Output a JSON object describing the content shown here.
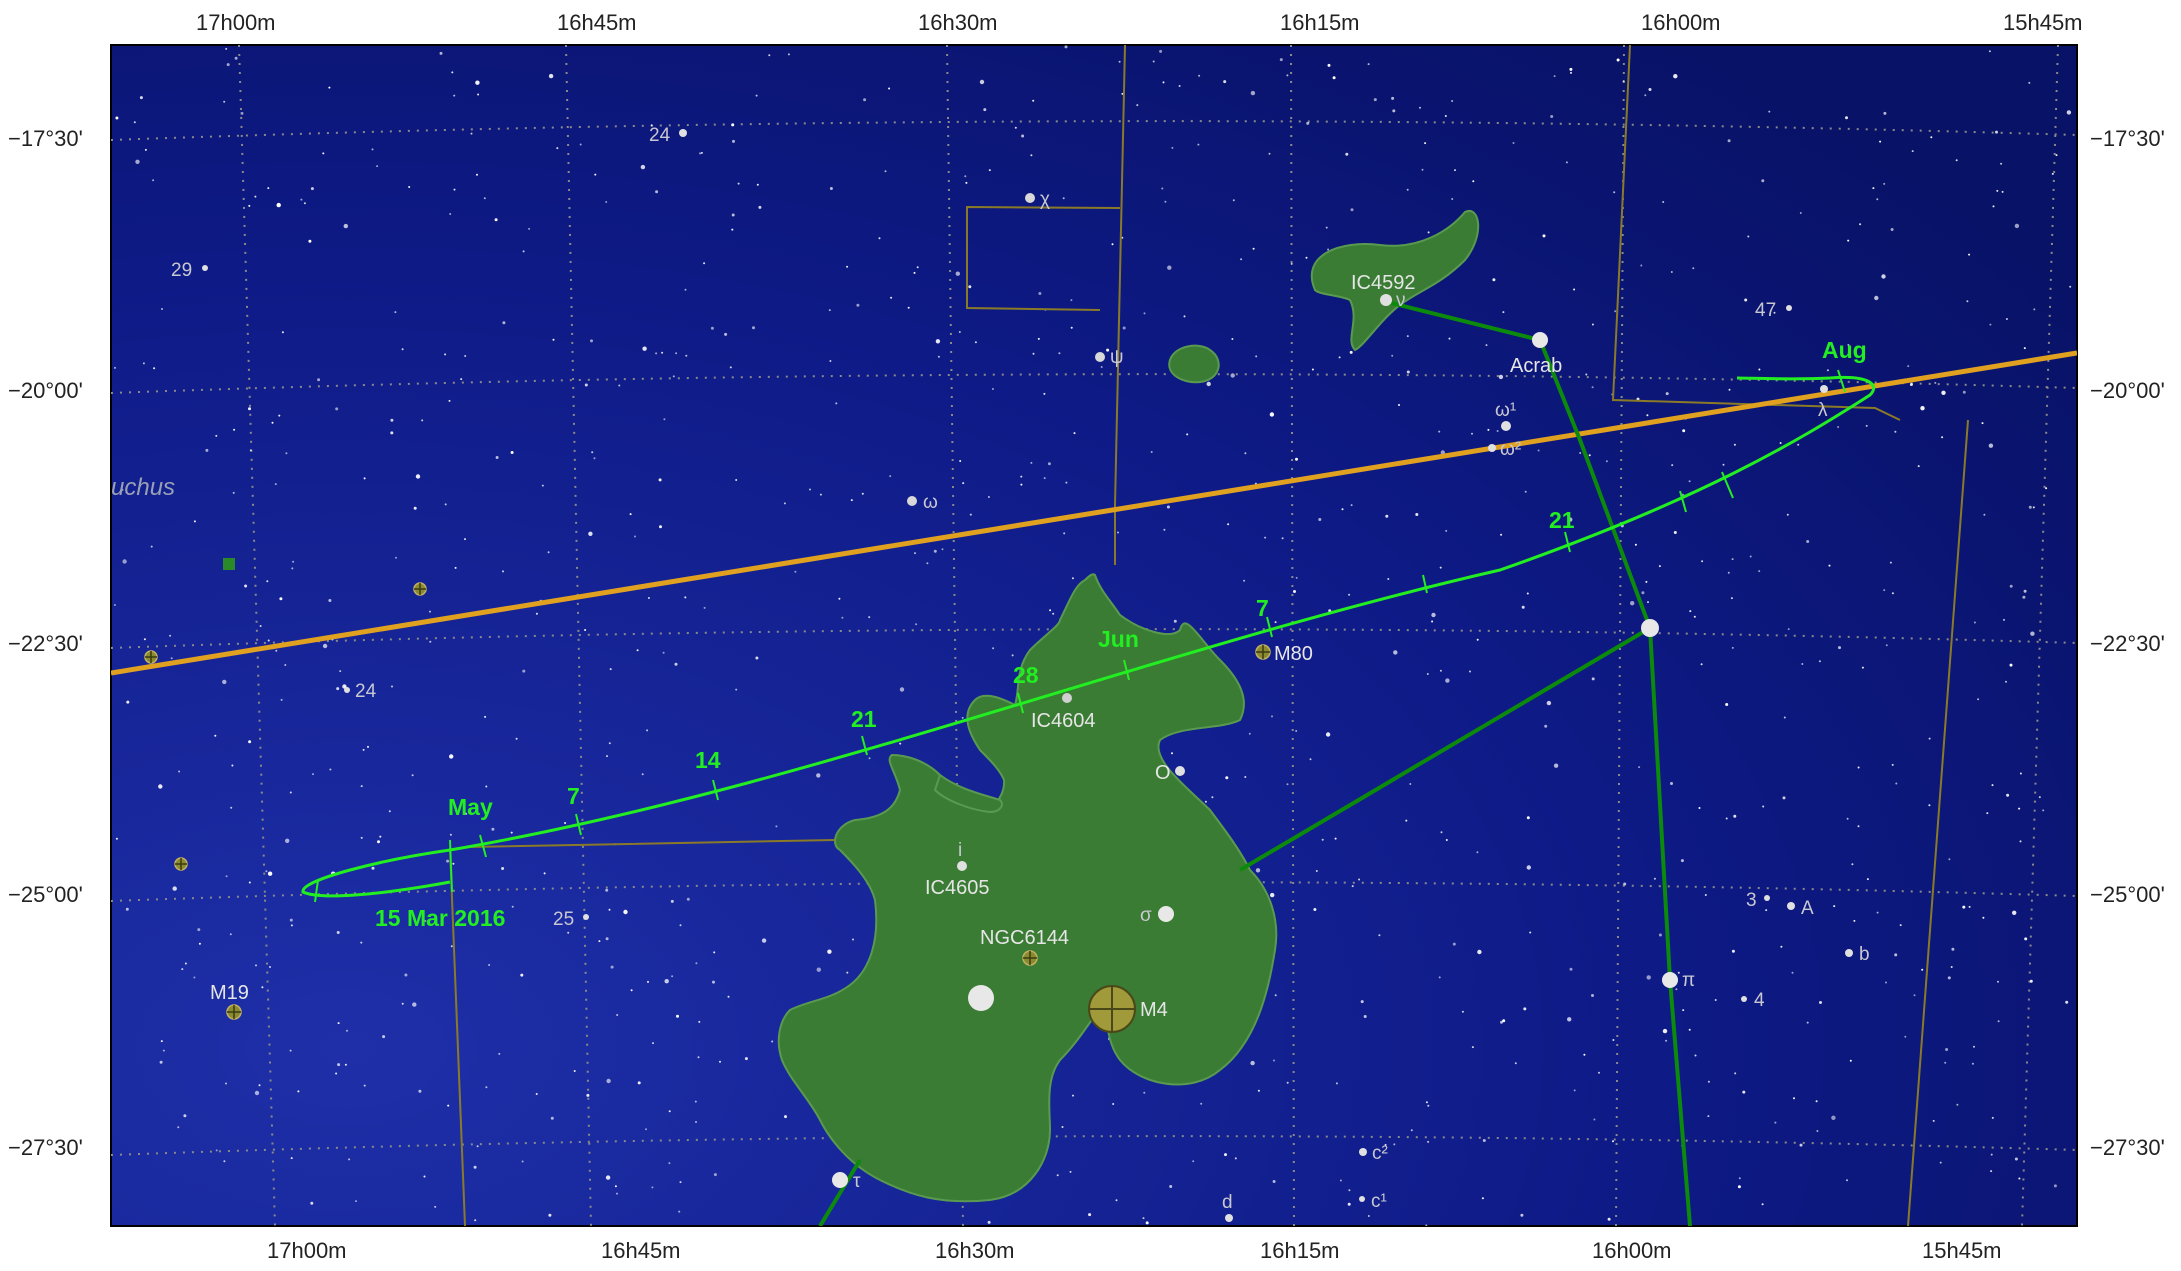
{
  "map": {
    "ra_top_labels": [
      "17h00m",
      "16h45m",
      "16h30m",
      "16h15m",
      "16h00m",
      "15h45m"
    ],
    "ra_bottom_labels": [
      "17h00m",
      "16h45m",
      "16h30m",
      "16h15m",
      "16h00m",
      "15h45m"
    ],
    "dec_labels": [
      "−17°30'",
      "−20°00'",
      "−22°30'",
      "−25°00'",
      "−27°30'"
    ],
    "constellation_fragment": "uchus",
    "stars": [
      {
        "id": "chi",
        "label": "χ"
      },
      {
        "id": "psi",
        "label": "ψ"
      },
      {
        "id": "omega",
        "label": "ω"
      },
      {
        "id": "nu",
        "label": "ν"
      },
      {
        "id": "acrab",
        "label": "Acrab"
      },
      {
        "id": "omega1",
        "label": "ω¹"
      },
      {
        "id": "omega2",
        "label": "ω²"
      },
      {
        "id": "lambda",
        "label": "λ"
      },
      {
        "id": "o",
        "label": "O"
      },
      {
        "id": "sigma",
        "label": "σ"
      },
      {
        "id": "pi",
        "label": "π"
      },
      {
        "id": "tau",
        "label": "τ"
      },
      {
        "id": "i",
        "label": "i"
      },
      {
        "id": "s24a",
        "label": "24"
      },
      {
        "id": "s29",
        "label": "29"
      },
      {
        "id": "s24b",
        "label": "24"
      },
      {
        "id": "s25",
        "label": "25"
      },
      {
        "id": "s47",
        "label": "47"
      },
      {
        "id": "s3",
        "label": "3"
      },
      {
        "id": "sA",
        "label": "A"
      },
      {
        "id": "sb",
        "label": "b"
      },
      {
        "id": "s4",
        "label": "4"
      },
      {
        "id": "c2",
        "label": "c²"
      },
      {
        "id": "c1",
        "label": "c¹"
      },
      {
        "id": "sd",
        "label": "d"
      }
    ],
    "deep_sky": [
      {
        "id": "ic4592",
        "label": "IC4592"
      },
      {
        "id": "ic4604",
        "label": "IC4604"
      },
      {
        "id": "ic4605",
        "label": "IC4605"
      },
      {
        "id": "ngc6144",
        "label": "NGC6144"
      },
      {
        "id": "m80",
        "label": "M80"
      },
      {
        "id": "m4",
        "label": "M4"
      },
      {
        "id": "m19",
        "label": "M19"
      }
    ],
    "path_labels": {
      "start": "15 Mar 2016",
      "may": "May",
      "d7a": "7",
      "d14": "14",
      "d21a": "21",
      "d28": "28",
      "jun": "Jun",
      "d7b": "7",
      "d21b": "21",
      "aug": "Aug"
    },
    "colors": {
      "sky": "#0a1478",
      "grid": "#8a8a8a",
      "ecliptic": "#e0a020",
      "path": "#22ee22",
      "stick": "#0c8a0c",
      "nebula": "#3a7c34",
      "boundary": "#8a7a28",
      "cluster": "#b0a850"
    }
  }
}
